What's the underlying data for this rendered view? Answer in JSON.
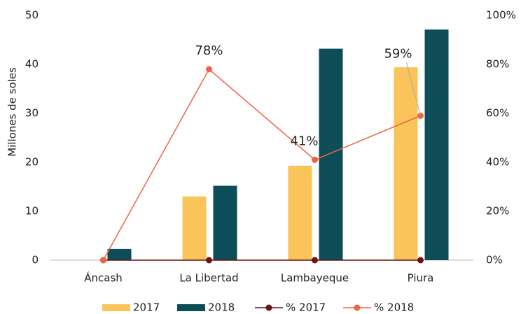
{
  "chart_data": {
    "type": "bar",
    "y_label": "Millones de soles",
    "categories": [
      "Áncash",
      "La Libertad",
      "Lambayeque",
      "Piura"
    ],
    "series": [
      {
        "name": "2017",
        "type": "bar",
        "color": "#fbc45a",
        "values": [
          0,
          13,
          19.3,
          39.4
        ]
      },
      {
        "name": "2018",
        "type": "bar",
        "color": "#0d4d57",
        "values": [
          2.3,
          15.2,
          43.2,
          47.1
        ]
      },
      {
        "name": "% 2017",
        "type": "line",
        "axis": "y2",
        "color": "#6b1212",
        "values": [
          0,
          0,
          0,
          0
        ]
      },
      {
        "name": "% 2018",
        "type": "line",
        "axis": "y2",
        "color": "#ef6445",
        "values": [
          0,
          78,
          41,
          59
        ],
        "value_labels": [
          null,
          "78%",
          "41%",
          "59%"
        ]
      }
    ],
    "ylim": [
      0,
      50
    ],
    "yticks": [
      0,
      10,
      20,
      30,
      40,
      50
    ],
    "y2lim": [
      0,
      100
    ],
    "y2ticks": [
      {
        "value": 0,
        "label": "0%"
      },
      {
        "value": 20,
        "label": "20%"
      },
      {
        "value": 40,
        "label": "40%"
      },
      {
        "value": 60,
        "label": "60%"
      },
      {
        "value": 80,
        "label": "80%"
      },
      {
        "value": 100,
        "label": "100%"
      }
    ],
    "legend": "bottom"
  }
}
